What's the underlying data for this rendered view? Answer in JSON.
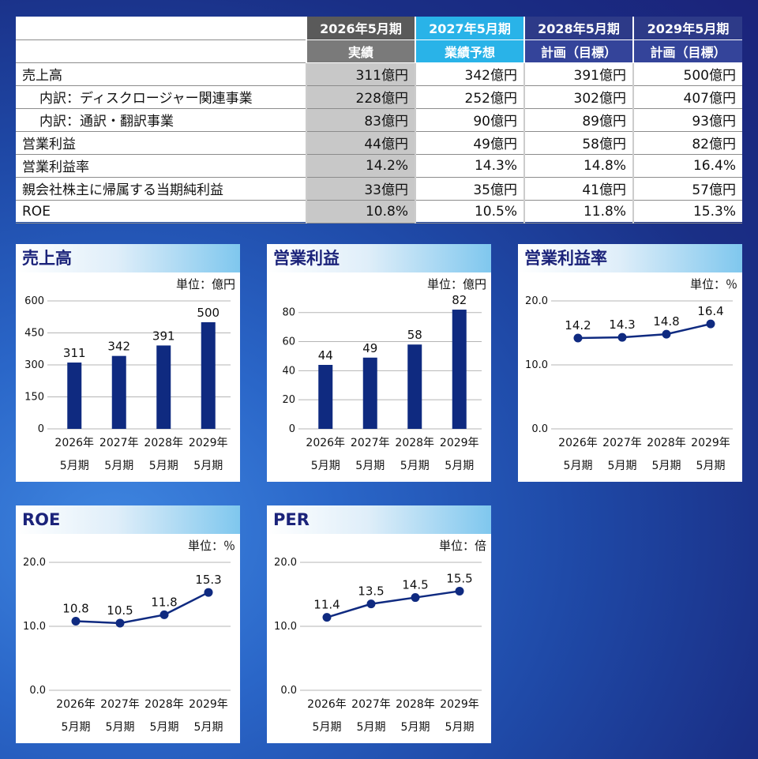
{
  "table": {
    "headers": [
      {
        "year": "2026年5月期",
        "kind": "実績",
        "style": "actual"
      },
      {
        "year": "2027年5月期",
        "kind": "業績予想",
        "style": "forecast"
      },
      {
        "year": "2028年5月期",
        "kind": "計画（目標）",
        "style": "plan"
      },
      {
        "year": "2029年5月期",
        "kind": "計画（目標）",
        "style": "plan"
      }
    ],
    "rows": [
      {
        "label": "売上高",
        "indent": false,
        "values": [
          "311億円",
          "342億円",
          "391億円",
          "500億円"
        ]
      },
      {
        "label": "内訳：ディスクロージャー関連事業",
        "indent": true,
        "values": [
          "228億円",
          "252億円",
          "302億円",
          "407億円"
        ]
      },
      {
        "label": "内訳：通訳・翻訳事業",
        "indent": true,
        "values": [
          "83億円",
          "90億円",
          "89億円",
          "93億円"
        ]
      },
      {
        "label": "営業利益",
        "indent": false,
        "values": [
          "44億円",
          "49億円",
          "58億円",
          "82億円"
        ]
      },
      {
        "label": "営業利益率",
        "indent": false,
        "values": [
          "14.2%",
          "14.3%",
          "14.8%",
          "16.4%"
        ]
      },
      {
        "label": "親会社株主に帰属する当期純利益",
        "indent": false,
        "values": [
          "33億円",
          "35億円",
          "41億円",
          "57億円"
        ]
      },
      {
        "label": "ROE",
        "indent": false,
        "values": [
          "10.8%",
          "10.5%",
          "11.8%",
          "15.3%"
        ]
      }
    ]
  },
  "chart_data": [
    {
      "type": "bar",
      "title": "売上高",
      "unit": "単位：億円",
      "categories": [
        [
          "2026年",
          "5月期"
        ],
        [
          "2027年",
          "5月期"
        ],
        [
          "2028年",
          "5月期"
        ],
        [
          "2029年",
          "5月期"
        ]
      ],
      "values": [
        311,
        342,
        391,
        500
      ],
      "labels": [
        "311",
        "342",
        "391",
        "500"
      ],
      "ylim": [
        0,
        600
      ],
      "yticks": [
        0,
        150,
        300,
        450,
        600
      ],
      "ytick_labels": [
        "0",
        "150",
        "300",
        "450",
        "600"
      ],
      "color": "#0f2a80",
      "grid": true
    },
    {
      "type": "bar",
      "title": "営業利益",
      "unit": "単位：億円",
      "categories": [
        [
          "2026年",
          "5月期"
        ],
        [
          "2027年",
          "5月期"
        ],
        [
          "2028年",
          "5月期"
        ],
        [
          "2029年",
          "5月期"
        ]
      ],
      "values": [
        44,
        49,
        58,
        82
      ],
      "labels": [
        "44",
        "49",
        "58",
        "82"
      ],
      "ylim": [
        0,
        88
      ],
      "yticks": [
        0,
        20,
        40,
        60,
        80
      ],
      "ytick_labels": [
        "0",
        "20",
        "40",
        "60",
        "80"
      ],
      "color": "#0f2a80",
      "grid": true
    },
    {
      "type": "line",
      "title": "営業利益率",
      "unit": "単位：％",
      "categories": [
        [
          "2026年",
          "5月期"
        ],
        [
          "2027年",
          "5月期"
        ],
        [
          "2028年",
          "5月期"
        ],
        [
          "2029年",
          "5月期"
        ]
      ],
      "values": [
        14.2,
        14.3,
        14.8,
        16.4
      ],
      "labels": [
        "14.2",
        "14.3",
        "14.8",
        "16.4"
      ],
      "ylim": [
        0,
        20
      ],
      "yticks": [
        0,
        10,
        20
      ],
      "ytick_labels": [
        "0.0",
        "10.0",
        "20.0"
      ],
      "color": "#0f2a80",
      "grid": true
    },
    {
      "type": "line",
      "title": "ROE",
      "unit": "単位：％",
      "categories": [
        [
          "2026年",
          "5月期"
        ],
        [
          "2027年",
          "5月期"
        ],
        [
          "2028年",
          "5月期"
        ],
        [
          "2029年",
          "5月期"
        ]
      ],
      "values": [
        10.8,
        10.5,
        11.8,
        15.3
      ],
      "labels": [
        "10.8",
        "10.5",
        "11.8",
        "15.3"
      ],
      "ylim": [
        0,
        20
      ],
      "yticks": [
        0,
        10,
        20
      ],
      "ytick_labels": [
        "0.0",
        "10.0",
        "20.0"
      ],
      "color": "#0f2a80",
      "grid": true
    },
    {
      "type": "line",
      "title": "PER",
      "unit": "単位：倍",
      "categories": [
        [
          "2026年",
          "5月期"
        ],
        [
          "2027年",
          "5月期"
        ],
        [
          "2028年",
          "5月期"
        ],
        [
          "2029年",
          "5月期"
        ]
      ],
      "values": [
        11.4,
        13.5,
        14.5,
        15.5
      ],
      "labels": [
        "11.4",
        "13.5",
        "14.5",
        "15.5"
      ],
      "ylim": [
        0,
        20
      ],
      "yticks": [
        0,
        10,
        20
      ],
      "ytick_labels": [
        "0.0",
        "10.0",
        "20.0"
      ],
      "color": "#0f2a80",
      "grid": true
    }
  ]
}
